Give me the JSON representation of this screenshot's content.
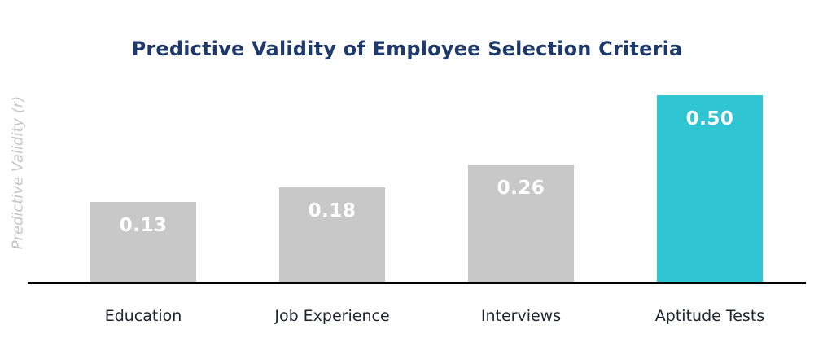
{
  "chart_data": {
    "type": "bar",
    "title": "Predictive Validity of Employee Selection Criteria",
    "ylabel": "Predictive Validity (r)",
    "xlabel": "",
    "categories": [
      "Education",
      "Job Experience",
      "Interviews",
      "Aptitude Tests"
    ],
    "values": [
      0.13,
      0.18,
      0.26,
      0.5
    ],
    "value_labels": [
      "0.13",
      "0.18",
      "0.26",
      "0.50"
    ],
    "bar_colors": [
      "#c8c8c8",
      "#c8c8c8",
      "#c8c8c8",
      "#30c5d2"
    ],
    "highlight_category": "Aptitude Tests",
    "title_color": "#1e3a6d",
    "axis_label_color": "#c6c6c6",
    "value_label_color": "#ffffff",
    "category_label_color": "#1f2430",
    "baseline_color": "#000000",
    "grid": false,
    "legend": false,
    "ylim": [
      0,
      0.5
    ]
  }
}
